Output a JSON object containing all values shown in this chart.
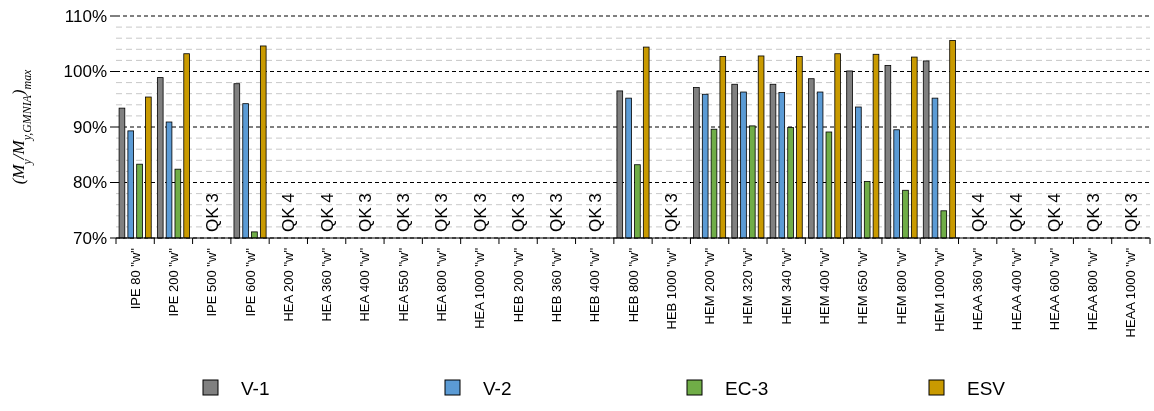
{
  "chart_data": {
    "type": "bar",
    "ylabel": "(M$_{y}$/M$_{y,GMNIA}$)$_{max}$",
    "categories": [
      "IPE 80 \"w\"",
      "IPE 200 \"w\"",
      "IPE 500 \"w\"",
      "IPE 600 \"w\"",
      "HEA 200 \"w\"",
      "HEA 360 \"w\"",
      "HEA 400 \"w\"",
      "HEA 550 \"w\"",
      "HEA 800 \"w\"",
      "HEA 1000 \"w\"",
      "HEB 200 \"w\"",
      "HEB 360 \"w\"",
      "HEB 400 \"w\"",
      "HEB 800 \"w\"",
      "HEB 1000 \"w\"",
      "HEM 200 \"w\"",
      "HEM 320 \"w\"",
      "HEM 340 \"w\"",
      "HEM 400 \"w\"",
      "HEM 650 \"w\"",
      "HEM 800 \"w\"",
      "HEM 1000 \"w\"",
      "HEAA 360 \"w\"",
      "HEAA 400 \"w\"",
      "HEAA 600 \"w\"",
      "HEAA 800 \"w\"",
      "HEAA 1000 \"w\""
    ],
    "series": [
      {
        "name": "V-1",
        "color": "#808080",
        "values": [
          93.4,
          98.9,
          null,
          97.8,
          null,
          null,
          null,
          null,
          null,
          null,
          null,
          null,
          null,
          96.5,
          null,
          97.1,
          97.7,
          97.7,
          98.7,
          100.1,
          101.1,
          101.9,
          null,
          null,
          null,
          null,
          null
        ]
      },
      {
        "name": "V-2",
        "color": "#5b9bd5",
        "values": [
          89.3,
          90.9,
          null,
          94.2,
          null,
          null,
          null,
          null,
          null,
          null,
          null,
          null,
          null,
          95.2,
          null,
          95.9,
          96.3,
          96.2,
          96.3,
          93.6,
          89.5,
          95.2,
          null,
          null,
          null,
          null,
          null
        ]
      },
      {
        "name": "EC-3",
        "color": "#70ad47",
        "values": [
          83.3,
          82.4,
          null,
          71.1,
          null,
          null,
          null,
          null,
          null,
          null,
          null,
          null,
          null,
          83.2,
          null,
          89.6,
          90.2,
          89.9,
          89.1,
          80.2,
          78.6,
          74.9,
          null,
          null,
          null,
          null,
          null
        ]
      },
      {
        "name": "ESV",
        "color": "#c99a00",
        "values": [
          95.4,
          103.2,
          null,
          104.6,
          null,
          null,
          null,
          null,
          null,
          null,
          null,
          null,
          null,
          104.4,
          null,
          102.7,
          102.8,
          102.7,
          103.2,
          103.1,
          102.6,
          105.6,
          null,
          null,
          null,
          null,
          null
        ]
      }
    ],
    "ylim": [
      70,
      110
    ],
    "yticks": [
      {
        "value": 70,
        "label": "70%"
      },
      {
        "value": 72,
        "label": null
      },
      {
        "value": 74,
        "label": null
      },
      {
        "value": 76,
        "label": null
      },
      {
        "value": 78,
        "label": null
      },
      {
        "value": 80,
        "label": "80%"
      },
      {
        "value": 82,
        "label": null
      },
      {
        "value": 84,
        "label": null
      },
      {
        "value": 86,
        "label": null
      },
      {
        "value": 88,
        "label": null
      },
      {
        "value": 90,
        "label": "90%"
      },
      {
        "value": 92,
        "label": null
      },
      {
        "value": 94,
        "label": null
      },
      {
        "value": 96,
        "label": null
      },
      {
        "value": 98,
        "label": null
      },
      {
        "value": 100,
        "label": "100%"
      },
      {
        "value": 102,
        "label": null
      },
      {
        "value": 104,
        "label": null
      },
      {
        "value": 106,
        "label": null
      },
      {
        "value": 108,
        "label": null
      },
      {
        "value": 110,
        "label": "110%"
      }
    ],
    "grid": "y",
    "legend": "bottom",
    "annotations": [
      "QK 3",
      "QK 4",
      "QK 4",
      "QK 3",
      "QK 3",
      "QK 3",
      "QK 3",
      "QK 3",
      "QK 3",
      "QK 3",
      "QK 3",
      "QK 4",
      "QK 4",
      "QK 4",
      "QK 3",
      "QK 3"
    ]
  }
}
